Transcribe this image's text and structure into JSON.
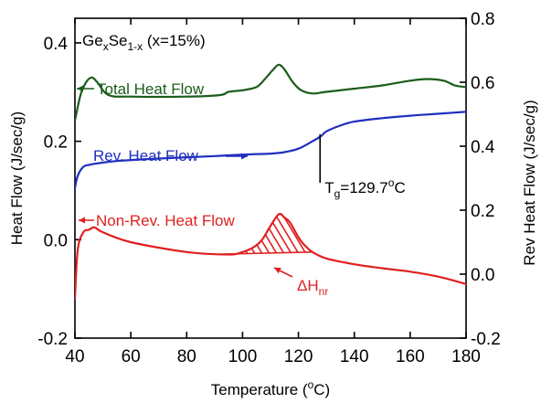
{
  "chart_data": {
    "type": "line",
    "title": "GexSe1-x (x=15%)",
    "title_parts": {
      "base1": "Ge",
      "sub1": "x",
      "base2": "Se",
      "sub2": "1-x",
      "rest": " (x=15%)"
    },
    "xlabel": "Temperature (°C)",
    "xlabel_parts": {
      "pre": "Temperature (",
      "sup": "o",
      "post": "C)"
    },
    "ylabel": "Heat Flow (J/sec/g)",
    "y2label": "Rev Heat Flow (J/sec/g)",
    "xlim": [
      40,
      180
    ],
    "ylim": [
      -0.2,
      0.45
    ],
    "y2lim": [
      -0.2,
      0.8
    ],
    "x_ticks": [
      "40",
      "60",
      "80",
      "100",
      "120",
      "140",
      "160",
      "180"
    ],
    "y_ticks": [
      "-0.2",
      "0.0",
      "0.2",
      "0.4"
    ],
    "y2_ticks": [
      "-0.2",
      "0.0",
      "0.2",
      "0.4",
      "0.6",
      "0.8"
    ],
    "grid": false,
    "colors": {
      "total": "#1a5c1a",
      "rev": "#1f2fbf",
      "nonrev": "#e02020",
      "axis": "#000000"
    },
    "series": [
      {
        "name": "Total Heat Flow",
        "axis": "right",
        "x": [
          40,
          42,
          44,
          46,
          48,
          52,
          60,
          80,
          92,
          95,
          100,
          105,
          108,
          111,
          113,
          115,
          118,
          121,
          125,
          130,
          140,
          150,
          160,
          166,
          172,
          176,
          180
        ],
        "y": [
          0.48,
          0.56,
          0.6,
          0.615,
          0.6,
          0.56,
          0.555,
          0.555,
          0.56,
          0.57,
          0.575,
          0.585,
          0.61,
          0.64,
          0.655,
          0.64,
          0.6,
          0.575,
          0.565,
          0.57,
          0.58,
          0.59,
          0.605,
          0.61,
          0.605,
          0.59,
          0.585
        ]
      },
      {
        "name": "Rev. Heat Flow",
        "axis": "left",
        "x": [
          40,
          41,
          43,
          45,
          48,
          55,
          70,
          90,
          100,
          110,
          115,
          120,
          125,
          128,
          130,
          135,
          140,
          150,
          160,
          170,
          180
        ],
        "y": [
          0.105,
          0.13,
          0.148,
          0.152,
          0.155,
          0.16,
          0.165,
          0.17,
          0.173,
          0.175,
          0.178,
          0.185,
          0.2,
          0.21,
          0.22,
          0.232,
          0.24,
          0.247,
          0.252,
          0.256,
          0.26
        ]
      },
      {
        "name": "Non-Rev. Heat Flow",
        "axis": "left",
        "x": [
          40,
          41,
          43,
          45,
          47,
          50,
          60,
          80,
          95,
          100,
          104,
          107,
          110,
          113,
          115,
          117,
          120,
          122,
          125,
          130,
          140,
          150,
          160,
          170,
          180
        ],
        "y": [
          -0.12,
          -0.02,
          0.015,
          0.02,
          0.025,
          0.015,
          -0.005,
          -0.025,
          -0.03,
          -0.025,
          -0.015,
          0.0,
          0.028,
          0.052,
          0.045,
          0.035,
          0.005,
          -0.01,
          -0.025,
          -0.038,
          -0.05,
          -0.058,
          -0.065,
          -0.075,
          -0.09
        ]
      }
    ],
    "annotations": {
      "total_label": "Total Heat Flow",
      "rev_label": "Rev. Heat Flow",
      "nonrev_label": "Non-Rev. Heat Flow",
      "tg_label": "Tg=129.7°C",
      "tg_parts": {
        "base": "T",
        "sub": "g",
        "mid": "=129.7",
        "sup": "o",
        "post": "C"
      },
      "tg_x": 129.7,
      "dh_label": "ΔHnr",
      "dh_parts": {
        "base": "ΔH",
        "sub": "nr"
      },
      "shaded_range": [
        93,
        125
      ]
    }
  }
}
